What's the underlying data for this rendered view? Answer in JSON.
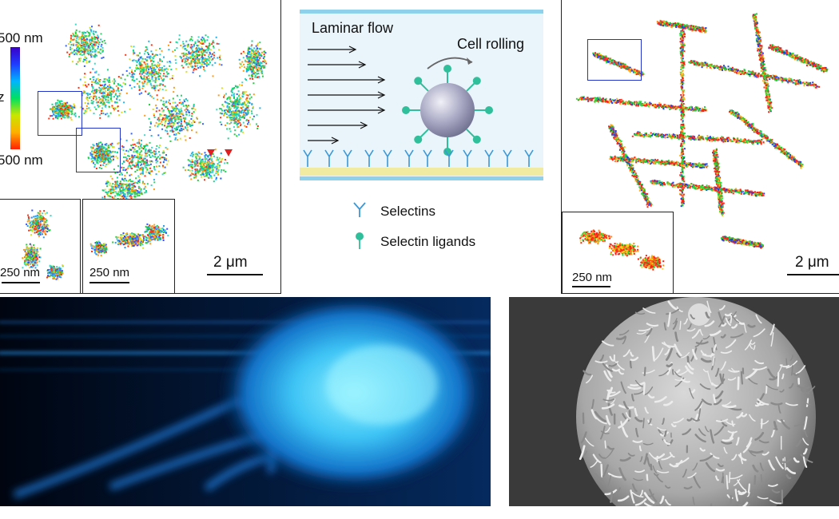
{
  "storm_left": {
    "colorbar_top": "500 nm",
    "colorbar_axis": "z",
    "colorbar_bottom": "500 nm",
    "inset1_scale": "250 nm",
    "inset2_scale": "250 nm",
    "main_scale": "2 μm"
  },
  "diagram": {
    "flow_label": "Laminar flow",
    "rolling_label": "Cell rolling",
    "legend_selectins": "Selectins",
    "legend_ligands": "Selectin ligands",
    "selectin_color": "#3b98d6",
    "ligand_color": "#2fbf9a"
  },
  "storm_right": {
    "inset_scale": "250 nm",
    "main_scale": "2 μm"
  }
}
